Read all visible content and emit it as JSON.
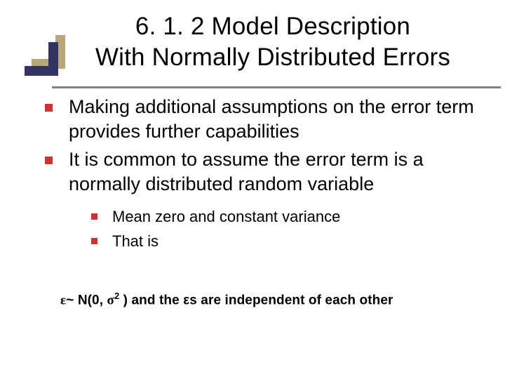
{
  "colors": {
    "bullet": "#cc3333",
    "underline": "#808098",
    "accent_navy": "#333366",
    "accent_gold": "#b8a878",
    "text": "#000000",
    "background": "#ffffff"
  },
  "typography": {
    "title_fontsize": 35,
    "body_fontsize": 27,
    "sub_fontsize": 22,
    "equation_fontsize": 19,
    "font_family": "Verdana"
  },
  "title": {
    "line1": "6. 1. 2 Model Description",
    "line2": "With Normally Distributed Errors"
  },
  "bullets": [
    {
      "text": "Making additional assumptions on the error term provides further capabilities"
    },
    {
      "text": "It is common to assume the error term is a normally distributed random variable",
      "sub": [
        {
          "text": "Mean zero and constant variance"
        },
        {
          "text": "That is"
        }
      ]
    }
  ],
  "equation": {
    "lhs_symbol": "ε",
    "tilde": "~",
    "dist": "N(0,",
    "sigma": "σ",
    "exp": "2",
    "close": ")",
    "tail": " and the εs are independent of each other"
  }
}
